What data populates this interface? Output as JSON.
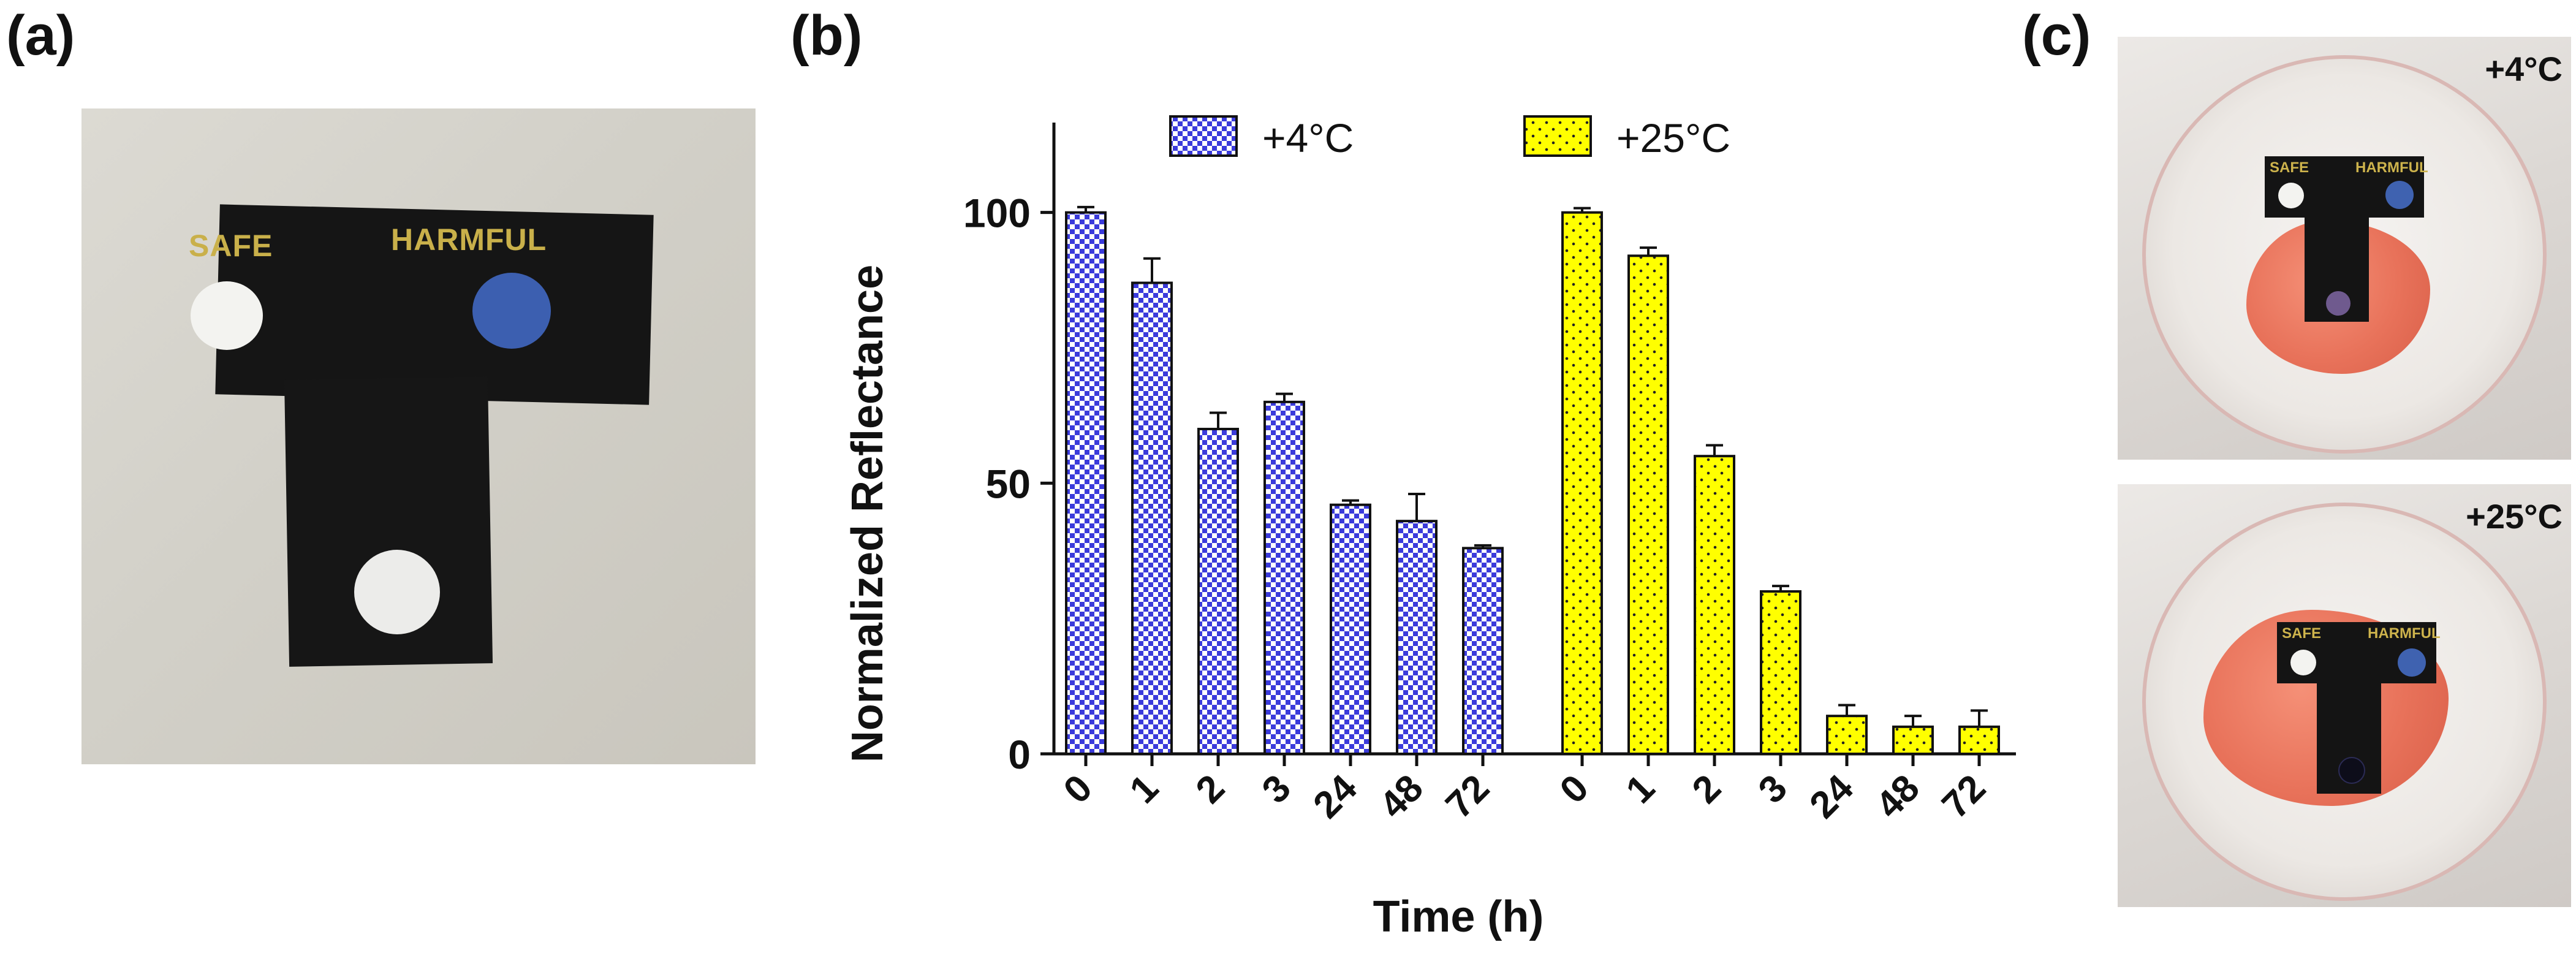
{
  "panel_labels": {
    "a": "(a)",
    "b": "(b)",
    "c": "(c)"
  },
  "photo_a": {
    "safe_label": "SAFE",
    "harmful_label": "HARMFUL",
    "colors": {
      "background": "#d4d2ca",
      "sensor": "#151515",
      "label": "#c9b04a",
      "safe_spot": "#f3f3f0",
      "harmful_spot": "#3c5fb0"
    }
  },
  "photo_c": {
    "top_label": "+4°C",
    "bottom_label": "+25°C",
    "safe_label": "SAFE",
    "harmful_label": "HARMFUL",
    "colors": {
      "meat": "#e8725a",
      "sensor": "#141414",
      "safe_spot": "#f3f3f0",
      "harmful_spot": "#3f62b0"
    }
  },
  "chart_data": {
    "type": "bar",
    "title": "",
    "xlabel": "Time (h)",
    "ylabel": "Normalized Reflectance",
    "ylim": [
      0,
      120
    ],
    "yticks": [
      0,
      50,
      100
    ],
    "legend_position": "top",
    "series": [
      {
        "name": "+4°C",
        "categories": [
          "0",
          "1",
          "2",
          "3",
          "24",
          "48",
          "72"
        ],
        "values": [
          100,
          87,
          60,
          65,
          46,
          43,
          38
        ],
        "errors": [
          1,
          4.5,
          3,
          1.5,
          0.8,
          5,
          0.5
        ],
        "color": "#3b3bdb",
        "pattern": "checker"
      },
      {
        "name": "+25°C",
        "categories": [
          "0",
          "1",
          "2",
          "3",
          "24",
          "48",
          "72"
        ],
        "values": [
          100,
          92,
          55,
          30,
          7,
          5,
          5
        ],
        "errors": [
          0.8,
          1.5,
          2,
          1,
          2,
          2,
          3
        ],
        "color": "#ffff00",
        "pattern": "dots"
      }
    ]
  }
}
